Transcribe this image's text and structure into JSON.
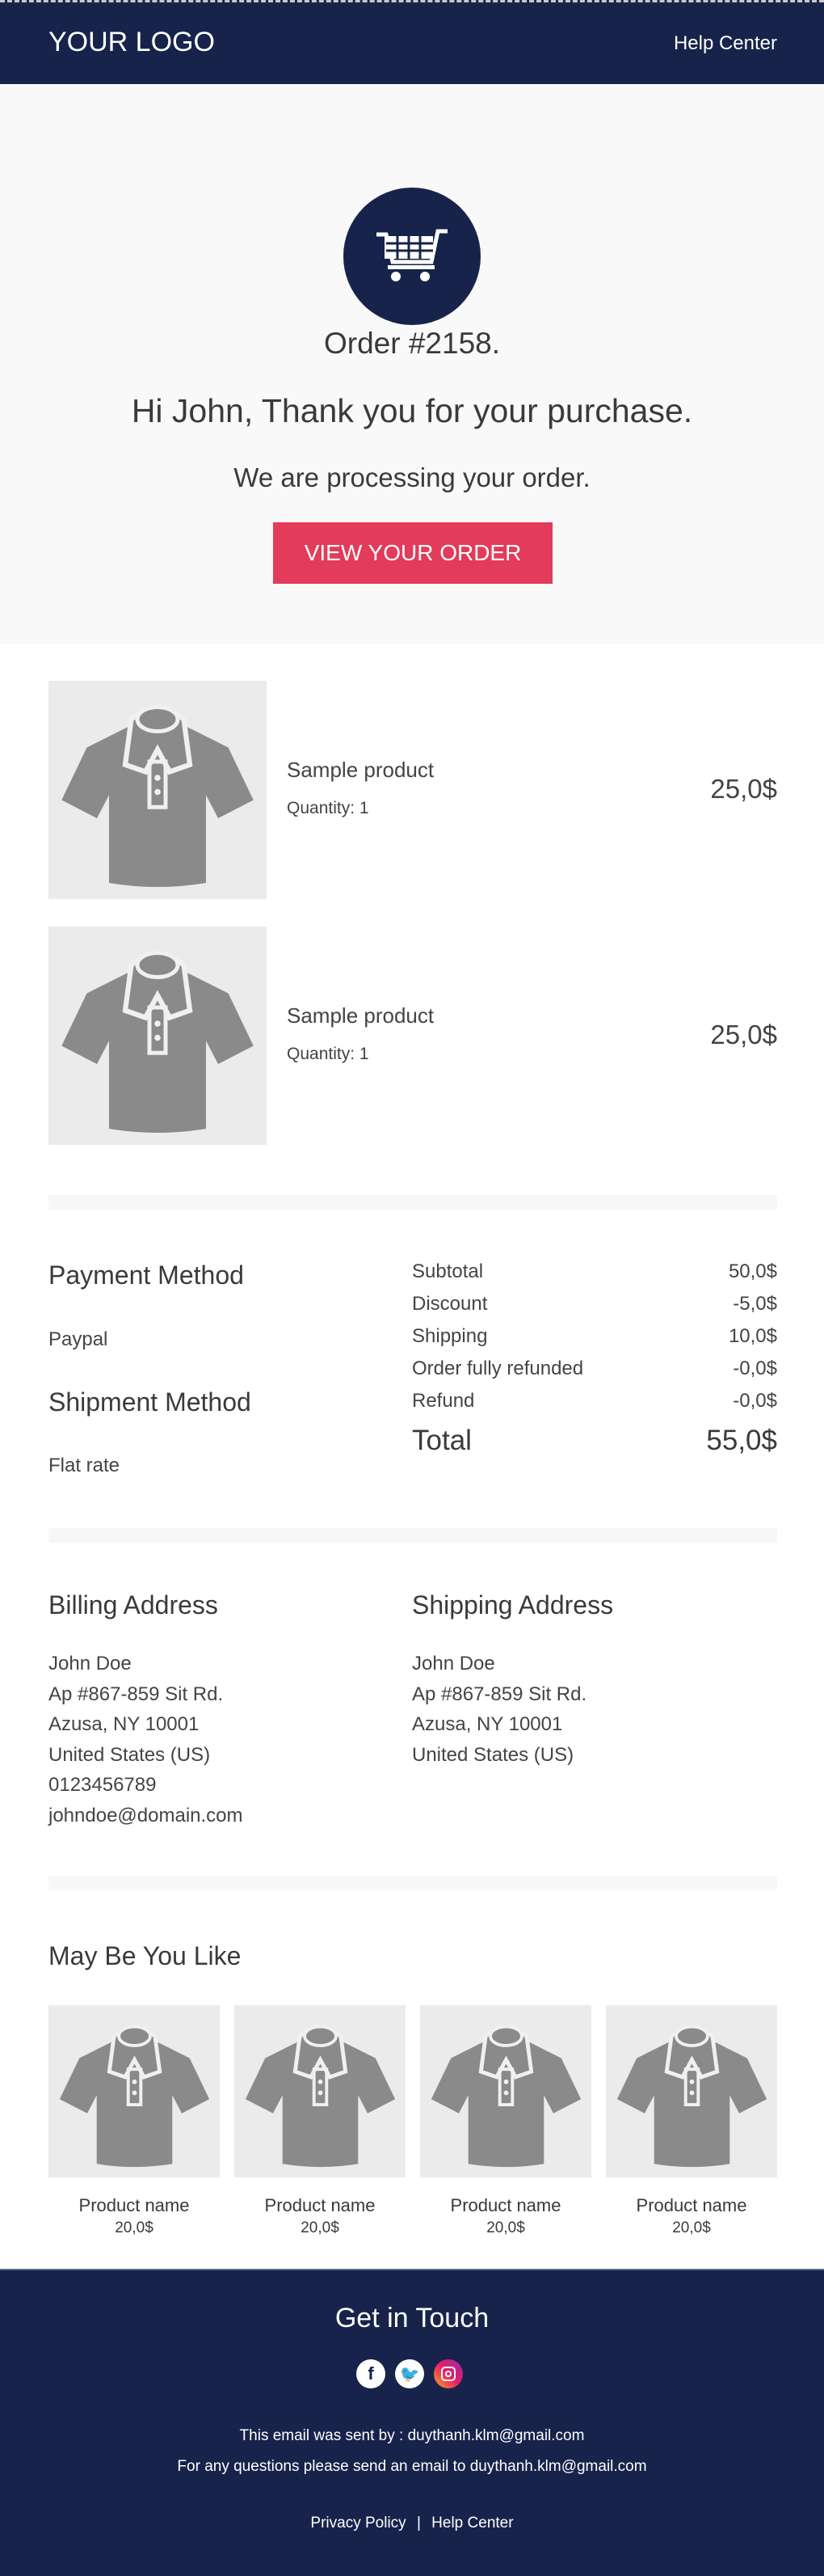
{
  "header": {
    "logo": "YOUR LOGO",
    "help": "Help Center"
  },
  "hero": {
    "icon": "shopping-cart-icon",
    "order": "Order #2158.",
    "greeting": "Hi John, Thank you for your purchase.",
    "status": "We are processing your order.",
    "button": "VIEW YOUR ORDER"
  },
  "items": [
    {
      "name": "Sample product",
      "quantity": "Quantity: 1",
      "price": "25,0$"
    },
    {
      "name": "Sample product",
      "quantity": "Quantity: 1",
      "price": "25,0$"
    }
  ],
  "payment": {
    "title": "Payment Method",
    "value": "Paypal"
  },
  "shipment": {
    "title": "Shipment Method",
    "value": "Flat rate"
  },
  "summary": [
    {
      "label": "Subtotal",
      "value": "50,0$"
    },
    {
      "label": "Discount",
      "value": "-5,0$"
    },
    {
      "label": "Shipping",
      "value": "10,0$"
    },
    {
      "label": "Order fully refunded",
      "value": "-0,0$"
    },
    {
      "label": "Refund",
      "value": "-0,0$"
    }
  ],
  "total": {
    "label": "Total",
    "value": "55,0$"
  },
  "billing": {
    "title": "Billing Address",
    "lines": [
      "John Doe",
      "Ap #867-859 Sit Rd.",
      "Azusa, NY 10001",
      "United States (US)",
      "0123456789",
      "johndoe@domain.com"
    ]
  },
  "shipping": {
    "title": "Shipping Address",
    "lines": [
      "John Doe",
      "Ap #867-859 Sit Rd.",
      "Azusa, NY 10001",
      "United States (US)"
    ]
  },
  "recommend": {
    "title": "May Be You Like",
    "products": [
      {
        "name": "Product name",
        "price": "20,0$"
      },
      {
        "name": "Product name",
        "price": "20,0$"
      },
      {
        "name": "Product name",
        "price": "20,0$"
      },
      {
        "name": "Product name",
        "price": "20,0$"
      }
    ]
  },
  "footer": {
    "title": "Get in Touch",
    "social": [
      "facebook-icon",
      "twitter-icon",
      "instagram-icon"
    ],
    "sent_by": "This email was sent by : duythanh.klm@gmail.com",
    "questions": "For any questions please send an email to duythanh.klm@gmail.com",
    "privacy": "Privacy Policy",
    "separator": "|",
    "help": "Help Center"
  },
  "colors": {
    "navy": "#17234a",
    "accent": "#e33b5a"
  }
}
